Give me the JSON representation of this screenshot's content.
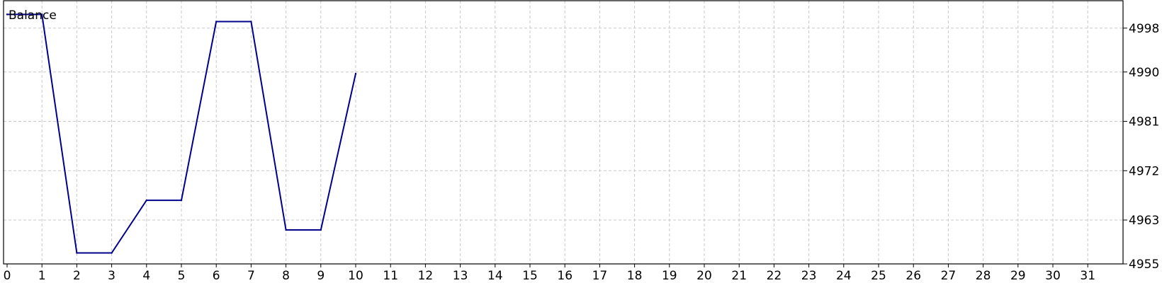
{
  "chart_data": {
    "type": "line",
    "title": "Balance",
    "x_ticks": [
      "0",
      "1",
      "2",
      "3",
      "4",
      "5",
      "6",
      "7",
      "8",
      "9",
      "10",
      "11",
      "12",
      "13",
      "14",
      "15",
      "16",
      "17",
      "18",
      "19",
      "20",
      "21",
      "22",
      "23",
      "24",
      "25",
      "26",
      "27",
      "28",
      "29",
      "30",
      "31"
    ],
    "y_ticks": [
      "4955",
      "4963",
      "4972",
      "4981",
      "4990",
      "4998"
    ],
    "xlim": [
      0,
      32
    ],
    "ylim": [
      4955,
      5003
    ],
    "grid": true,
    "series": [
      {
        "color": "#00008b",
        "points": [
          {
            "x": 0,
            "y": 5000.5
          },
          {
            "x": 1,
            "y": 5000.5
          },
          {
            "x": 2,
            "y": 4957.0
          },
          {
            "x": 3,
            "y": 4957.0
          },
          {
            "x": 4,
            "y": 4966.6
          },
          {
            "x": 5,
            "y": 4966.6
          },
          {
            "x": 6,
            "y": 4999.2
          },
          {
            "x": 7,
            "y": 4999.2
          },
          {
            "x": 8,
            "y": 4961.2
          },
          {
            "x": 9,
            "y": 4961.2
          },
          {
            "x": 10,
            "y": 4989.7
          }
        ]
      }
    ]
  }
}
